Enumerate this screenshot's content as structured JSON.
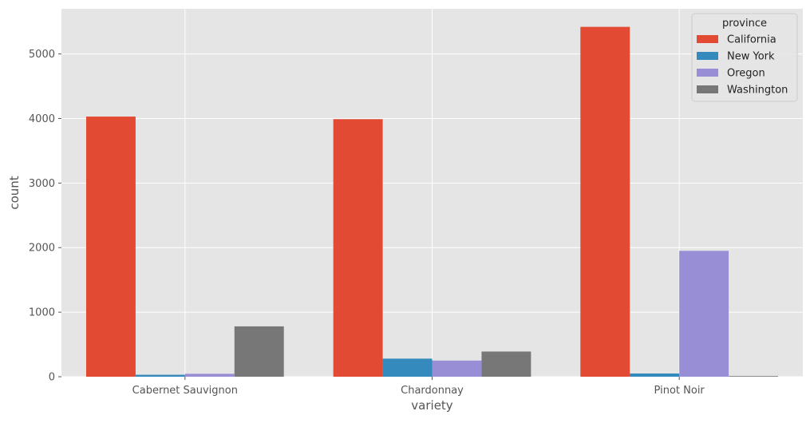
{
  "chart_data": {
    "type": "bar",
    "categories": [
      "Cabernet Sauvignon",
      "Chardonnay",
      "Pinot Noir"
    ],
    "series": [
      {
        "name": "California",
        "values": [
          4030,
          3990,
          5420
        ],
        "color": "#E24A33"
      },
      {
        "name": "New York",
        "values": [
          30,
          280,
          50
        ],
        "color": "#348ABD"
      },
      {
        "name": "Oregon",
        "values": [
          45,
          250,
          1950
        ],
        "color": "#988ED5"
      },
      {
        "name": "Washington",
        "values": [
          780,
          390,
          10
        ],
        "color": "#777777"
      }
    ],
    "xlabel": "variety",
    "ylabel": "count",
    "ylim": [
      0,
      5700
    ],
    "yticks": [
      0,
      1000,
      2000,
      3000,
      4000,
      5000
    ],
    "legend_title": "province",
    "legend_position": "top-right",
    "grid": true,
    "style": {
      "background": "#E5E5E5",
      "grid_color": "#FFFFFF"
    }
  }
}
